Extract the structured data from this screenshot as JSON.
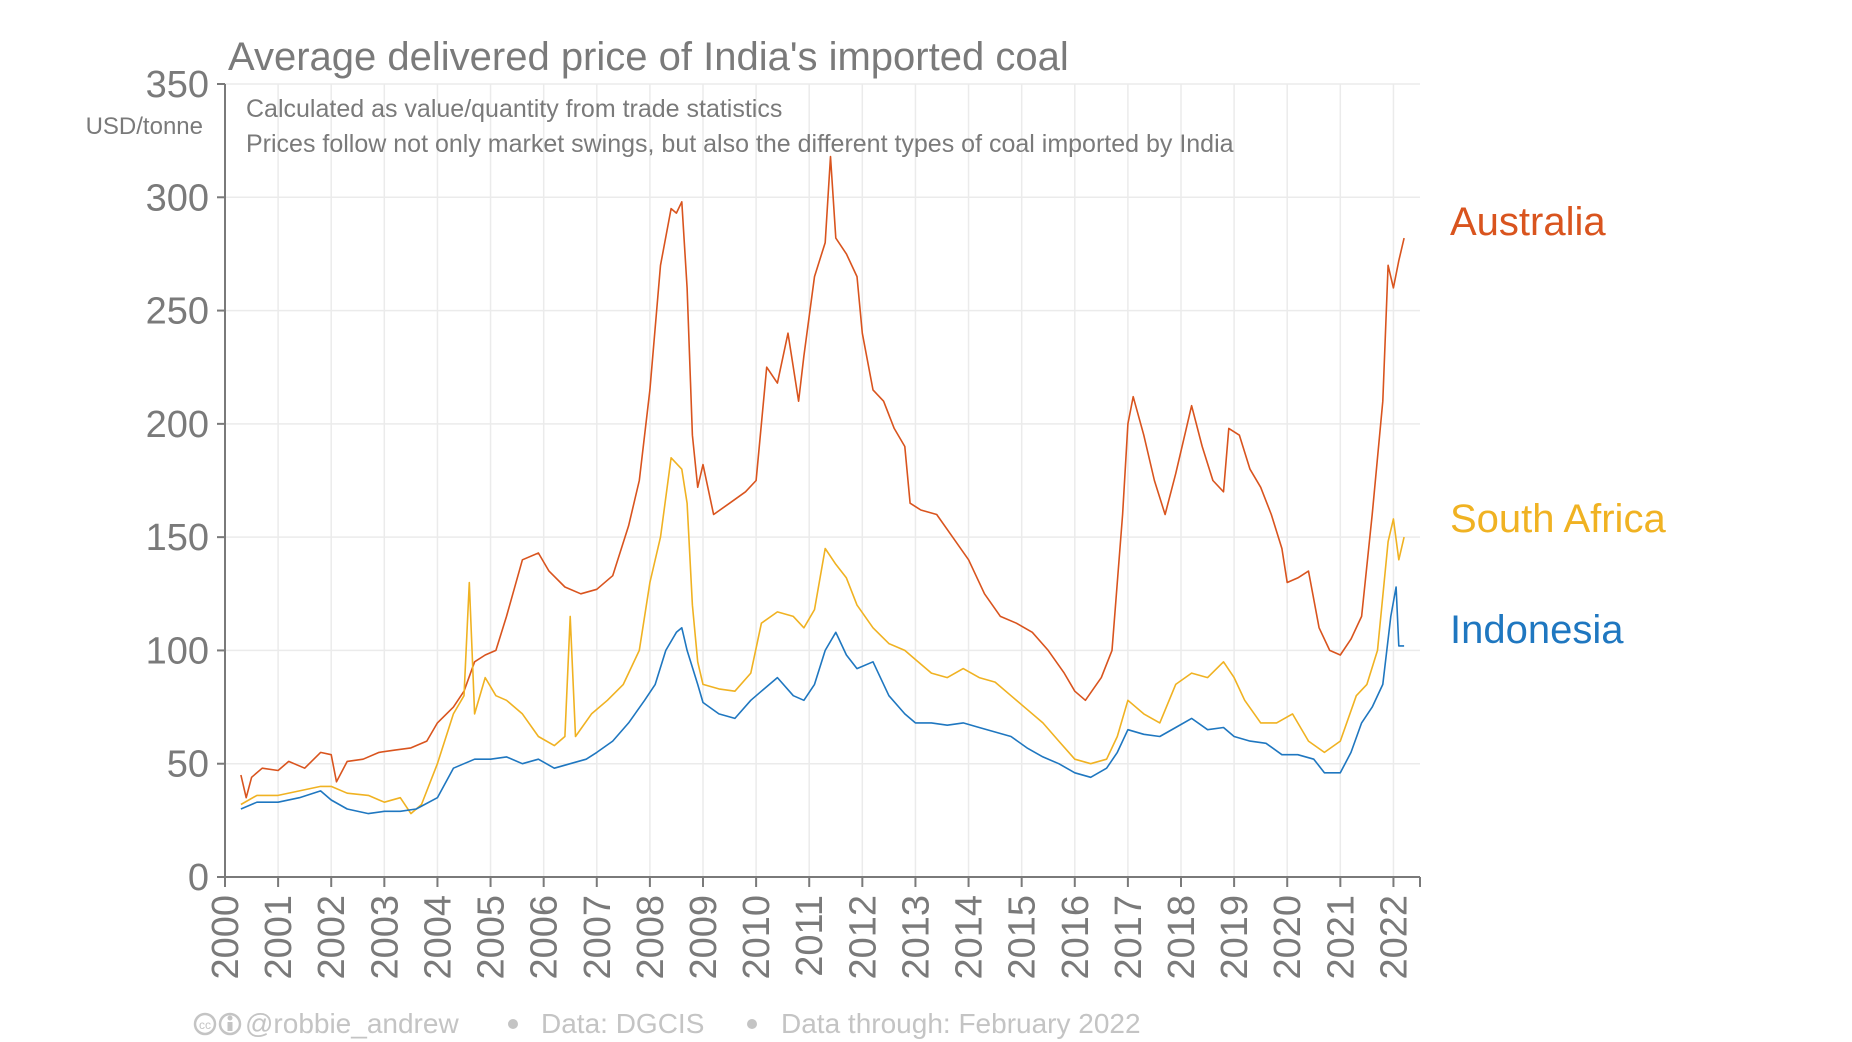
{
  "chart_data": {
    "type": "line",
    "title": "Average delivered price of India's imported coal",
    "subtitle_lines": [
      "Calculated as value/quantity from trade statistics",
      "Prices follow not only market swings, but also the different types of coal imported by India"
    ],
    "ylabel": "USD/tonne",
    "ylim": [
      0,
      350
    ],
    "xlim": [
      2000,
      2022.5
    ],
    "yticks": [
      0,
      50,
      100,
      150,
      200,
      250,
      300,
      350
    ],
    "xticks": [
      "2000",
      "2001",
      "2002",
      "2003",
      "2004",
      "2005",
      "2006",
      "2007",
      "2008",
      "2009",
      "2010",
      "2011",
      "2012",
      "2013",
      "2014",
      "2015",
      "2016",
      "2017",
      "2018",
      "2019",
      "2020",
      "2021",
      "2022"
    ],
    "grid": true,
    "legend": "right, labels at series ends",
    "series": [
      {
        "name": "Australia",
        "color": "#d9541e",
        "points": [
          [
            2000.3,
            45
          ],
          [
            2000.4,
            35
          ],
          [
            2000.5,
            44
          ],
          [
            2000.7,
            48
          ],
          [
            2001.0,
            47
          ],
          [
            2001.2,
            51
          ],
          [
            2001.5,
            48
          ],
          [
            2001.8,
            55
          ],
          [
            2002.0,
            54
          ],
          [
            2002.1,
            42
          ],
          [
            2002.3,
            51
          ],
          [
            2002.6,
            52
          ],
          [
            2002.9,
            55
          ],
          [
            2003.2,
            56
          ],
          [
            2003.5,
            57
          ],
          [
            2003.8,
            60
          ],
          [
            2004.0,
            68
          ],
          [
            2004.3,
            75
          ],
          [
            2004.5,
            82
          ],
          [
            2004.7,
            95
          ],
          [
            2004.9,
            98
          ],
          [
            2005.1,
            100
          ],
          [
            2005.3,
            115
          ],
          [
            2005.6,
            140
          ],
          [
            2005.9,
            143
          ],
          [
            2006.1,
            135
          ],
          [
            2006.4,
            128
          ],
          [
            2006.7,
            125
          ],
          [
            2007.0,
            127
          ],
          [
            2007.3,
            133
          ],
          [
            2007.6,
            155
          ],
          [
            2007.8,
            175
          ],
          [
            2008.0,
            215
          ],
          [
            2008.2,
            270
          ],
          [
            2008.4,
            295
          ],
          [
            2008.5,
            293
          ],
          [
            2008.6,
            298
          ],
          [
            2008.7,
            260
          ],
          [
            2008.8,
            195
          ],
          [
            2008.9,
            172
          ],
          [
            2009.0,
            182
          ],
          [
            2009.2,
            160
          ],
          [
            2009.5,
            165
          ],
          [
            2009.8,
            170
          ],
          [
            2010.0,
            175
          ],
          [
            2010.2,
            225
          ],
          [
            2010.4,
            218
          ],
          [
            2010.6,
            240
          ],
          [
            2010.8,
            210
          ],
          [
            2010.9,
            230
          ],
          [
            2011.1,
            265
          ],
          [
            2011.3,
            280
          ],
          [
            2011.4,
            318
          ],
          [
            2011.5,
            282
          ],
          [
            2011.7,
            275
          ],
          [
            2011.9,
            265
          ],
          [
            2012.0,
            240
          ],
          [
            2012.2,
            215
          ],
          [
            2012.4,
            210
          ],
          [
            2012.6,
            198
          ],
          [
            2012.8,
            190
          ],
          [
            2012.9,
            165
          ],
          [
            2013.1,
            162
          ],
          [
            2013.4,
            160
          ],
          [
            2013.7,
            150
          ],
          [
            2014.0,
            140
          ],
          [
            2014.3,
            125
          ],
          [
            2014.6,
            115
          ],
          [
            2014.9,
            112
          ],
          [
            2015.2,
            108
          ],
          [
            2015.5,
            100
          ],
          [
            2015.8,
            90
          ],
          [
            2016.0,
            82
          ],
          [
            2016.2,
            78
          ],
          [
            2016.5,
            88
          ],
          [
            2016.7,
            100
          ],
          [
            2016.9,
            160
          ],
          [
            2017.0,
            200
          ],
          [
            2017.1,
            212
          ],
          [
            2017.3,
            195
          ],
          [
            2017.5,
            175
          ],
          [
            2017.7,
            160
          ],
          [
            2017.9,
            178
          ],
          [
            2018.1,
            198
          ],
          [
            2018.2,
            208
          ],
          [
            2018.4,
            190
          ],
          [
            2018.6,
            175
          ],
          [
            2018.8,
            170
          ],
          [
            2018.9,
            198
          ],
          [
            2019.1,
            195
          ],
          [
            2019.3,
            180
          ],
          [
            2019.5,
            172
          ],
          [
            2019.7,
            160
          ],
          [
            2019.9,
            145
          ],
          [
            2020.0,
            130
          ],
          [
            2020.2,
            132
          ],
          [
            2020.4,
            135
          ],
          [
            2020.6,
            110
          ],
          [
            2020.8,
            100
          ],
          [
            2021.0,
            98
          ],
          [
            2021.2,
            105
          ],
          [
            2021.4,
            115
          ],
          [
            2021.6,
            160
          ],
          [
            2021.8,
            210
          ],
          [
            2021.9,
            270
          ],
          [
            2022.0,
            260
          ],
          [
            2022.1,
            272
          ],
          [
            2022.2,
            282
          ]
        ]
      },
      {
        "name": "South Africa",
        "color": "#f0b222",
        "points": [
          [
            2000.3,
            32
          ],
          [
            2000.6,
            36
          ],
          [
            2001.0,
            36
          ],
          [
            2001.4,
            38
          ],
          [
            2001.8,
            40
          ],
          [
            2002.0,
            40
          ],
          [
            2002.3,
            37
          ],
          [
            2002.7,
            36
          ],
          [
            2003.0,
            33
          ],
          [
            2003.3,
            35
          ],
          [
            2003.5,
            28
          ],
          [
            2003.7,
            32
          ],
          [
            2004.0,
            50
          ],
          [
            2004.3,
            72
          ],
          [
            2004.5,
            80
          ],
          [
            2004.6,
            130
          ],
          [
            2004.7,
            72
          ],
          [
            2004.9,
            88
          ],
          [
            2005.1,
            80
          ],
          [
            2005.3,
            78
          ],
          [
            2005.6,
            72
          ],
          [
            2005.9,
            62
          ],
          [
            2006.2,
            58
          ],
          [
            2006.4,
            62
          ],
          [
            2006.5,
            115
          ],
          [
            2006.6,
            62
          ],
          [
            2006.9,
            72
          ],
          [
            2007.2,
            78
          ],
          [
            2007.5,
            85
          ],
          [
            2007.8,
            100
          ],
          [
            2008.0,
            130
          ],
          [
            2008.2,
            150
          ],
          [
            2008.4,
            185
          ],
          [
            2008.6,
            180
          ],
          [
            2008.7,
            165
          ],
          [
            2008.8,
            120
          ],
          [
            2008.9,
            95
          ],
          [
            2009.0,
            85
          ],
          [
            2009.3,
            83
          ],
          [
            2009.6,
            82
          ],
          [
            2009.9,
            90
          ],
          [
            2010.1,
            112
          ],
          [
            2010.4,
            117
          ],
          [
            2010.7,
            115
          ],
          [
            2010.9,
            110
          ],
          [
            2011.1,
            118
          ],
          [
            2011.3,
            145
          ],
          [
            2011.5,
            138
          ],
          [
            2011.7,
            132
          ],
          [
            2011.9,
            120
          ],
          [
            2012.2,
            110
          ],
          [
            2012.5,
            103
          ],
          [
            2012.8,
            100
          ],
          [
            2013.0,
            96
          ],
          [
            2013.3,
            90
          ],
          [
            2013.6,
            88
          ],
          [
            2013.9,
            92
          ],
          [
            2014.2,
            88
          ],
          [
            2014.5,
            86
          ],
          [
            2014.8,
            80
          ],
          [
            2015.1,
            74
          ],
          [
            2015.4,
            68
          ],
          [
            2015.7,
            60
          ],
          [
            2016.0,
            52
          ],
          [
            2016.3,
            50
          ],
          [
            2016.6,
            52
          ],
          [
            2016.8,
            62
          ],
          [
            2017.0,
            78
          ],
          [
            2017.3,
            72
          ],
          [
            2017.6,
            68
          ],
          [
            2017.9,
            85
          ],
          [
            2018.2,
            90
          ],
          [
            2018.5,
            88
          ],
          [
            2018.8,
            95
          ],
          [
            2019.0,
            88
          ],
          [
            2019.2,
            78
          ],
          [
            2019.5,
            68
          ],
          [
            2019.8,
            68
          ],
          [
            2020.1,
            72
          ],
          [
            2020.4,
            60
          ],
          [
            2020.7,
            55
          ],
          [
            2021.0,
            60
          ],
          [
            2021.3,
            80
          ],
          [
            2021.5,
            85
          ],
          [
            2021.7,
            100
          ],
          [
            2021.9,
            148
          ],
          [
            2022.0,
            158
          ],
          [
            2022.1,
            140
          ],
          [
            2022.2,
            150
          ]
        ]
      },
      {
        "name": "Indonesia",
        "color": "#1f77c0",
        "points": [
          [
            2000.3,
            30
          ],
          [
            2000.6,
            33
          ],
          [
            2001.0,
            33
          ],
          [
            2001.4,
            35
          ],
          [
            2001.8,
            38
          ],
          [
            2002.0,
            34
          ],
          [
            2002.3,
            30
          ],
          [
            2002.7,
            28
          ],
          [
            2003.0,
            29
          ],
          [
            2003.3,
            29
          ],
          [
            2003.6,
            30
          ],
          [
            2004.0,
            35
          ],
          [
            2004.3,
            48
          ],
          [
            2004.5,
            50
          ],
          [
            2004.7,
            52
          ],
          [
            2005.0,
            52
          ],
          [
            2005.3,
            53
          ],
          [
            2005.6,
            50
          ],
          [
            2005.9,
            52
          ],
          [
            2006.2,
            48
          ],
          [
            2006.5,
            50
          ],
          [
            2006.8,
            52
          ],
          [
            2007.0,
            55
          ],
          [
            2007.3,
            60
          ],
          [
            2007.6,
            68
          ],
          [
            2007.9,
            78
          ],
          [
            2008.1,
            85
          ],
          [
            2008.3,
            100
          ],
          [
            2008.5,
            108
          ],
          [
            2008.6,
            110
          ],
          [
            2008.7,
            100
          ],
          [
            2008.9,
            85
          ],
          [
            2009.0,
            77
          ],
          [
            2009.3,
            72
          ],
          [
            2009.6,
            70
          ],
          [
            2009.9,
            78
          ],
          [
            2010.1,
            82
          ],
          [
            2010.4,
            88
          ],
          [
            2010.7,
            80
          ],
          [
            2010.9,
            78
          ],
          [
            2011.1,
            85
          ],
          [
            2011.3,
            100
          ],
          [
            2011.5,
            108
          ],
          [
            2011.7,
            98
          ],
          [
            2011.9,
            92
          ],
          [
            2012.2,
            95
          ],
          [
            2012.5,
            80
          ],
          [
            2012.8,
            72
          ],
          [
            2013.0,
            68
          ],
          [
            2013.3,
            68
          ],
          [
            2013.6,
            67
          ],
          [
            2013.9,
            68
          ],
          [
            2014.2,
            66
          ],
          [
            2014.5,
            64
          ],
          [
            2014.8,
            62
          ],
          [
            2015.1,
            57
          ],
          [
            2015.4,
            53
          ],
          [
            2015.7,
            50
          ],
          [
            2016.0,
            46
          ],
          [
            2016.3,
            44
          ],
          [
            2016.6,
            48
          ],
          [
            2016.8,
            55
          ],
          [
            2017.0,
            65
          ],
          [
            2017.3,
            63
          ],
          [
            2017.6,
            62
          ],
          [
            2017.9,
            66
          ],
          [
            2018.2,
            70
          ],
          [
            2018.5,
            65
          ],
          [
            2018.8,
            66
          ],
          [
            2019.0,
            62
          ],
          [
            2019.3,
            60
          ],
          [
            2019.6,
            59
          ],
          [
            2019.9,
            54
          ],
          [
            2020.2,
            54
          ],
          [
            2020.5,
            52
          ],
          [
            2020.7,
            46
          ],
          [
            2021.0,
            46
          ],
          [
            2021.2,
            55
          ],
          [
            2021.4,
            68
          ],
          [
            2021.6,
            75
          ],
          [
            2021.8,
            85
          ],
          [
            2021.95,
            115
          ],
          [
            2022.05,
            128
          ],
          [
            2022.1,
            102
          ],
          [
            2022.2,
            102
          ]
        ]
      }
    ]
  },
  "footer": {
    "icons": [
      "creative-commons-icon",
      "attribution-icon"
    ],
    "handle": "@robbie_andrew",
    "source": "Data: DGCIS",
    "through": "Data through: February 2022"
  }
}
